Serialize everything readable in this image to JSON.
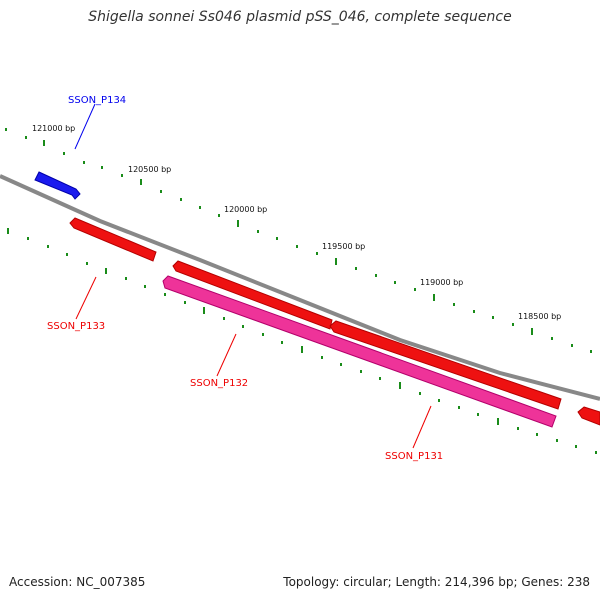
{
  "title": "Shigella sonnei Ss046 plasmid pSS_046, complete sequence",
  "footer": {
    "accession": "Accession: NC_007385",
    "summary": "Topology: circular; Length: 214,396 bp; Genes: 238"
  },
  "colors": {
    "backbone": "#888888",
    "tick": "#1a8c1a",
    "forward_gene": "#0000ee",
    "reverse_gene": "#ee0000",
    "pseudo_gene": "#ee3399"
  },
  "ticks": [
    {
      "label": "121000 bp"
    },
    {
      "label": "120500 bp"
    },
    {
      "label": "120000 bp"
    },
    {
      "label": "119500 bp"
    },
    {
      "label": "119000 bp"
    },
    {
      "label": "118500 bp"
    }
  ],
  "genes": [
    {
      "name": "SSON_P134",
      "strand": "forward",
      "type": "gene"
    },
    {
      "name": "SSON_P133",
      "strand": "reverse",
      "type": "gene"
    },
    {
      "name": "SSON_P132",
      "strand": "reverse",
      "type": "gene"
    },
    {
      "name": "SSON_P131",
      "strand": "reverse",
      "type": "pseudo"
    }
  ]
}
